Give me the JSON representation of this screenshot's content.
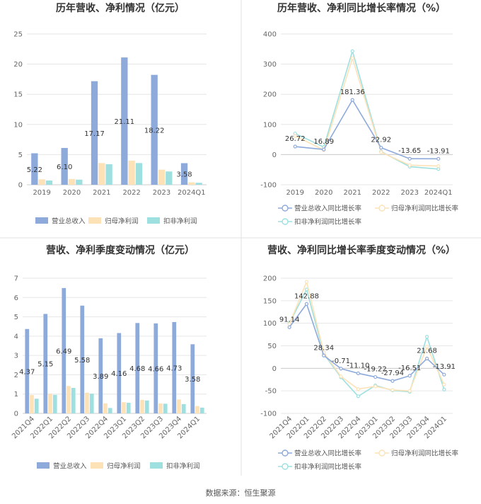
{
  "colors": {
    "revenue": "#8eaadb",
    "net_profit": "#fde2b7",
    "deducted_profit": "#9ee0e0",
    "grid": "#e6e6e6",
    "axis": "#cccccc",
    "divider": "#e0e0e0"
  },
  "source": "数据来源：恒生聚源",
  "chart_data": [
    {
      "type": "bar",
      "title": "历年营收、净利情况（亿元）",
      "categories": [
        "2019",
        "2020",
        "2021",
        "2022",
        "2023",
        "2024Q1"
      ],
      "ylim": [
        0,
        25
      ],
      "yticks": [
        0,
        5,
        10,
        15,
        20,
        25
      ],
      "grid": true,
      "legend_position": "bottom",
      "series": [
        {
          "name": "营业总收入",
          "values": [
            5.22,
            6.1,
            17.17,
            21.11,
            18.22,
            3.58
          ],
          "labels": [
            "5.22",
            "6.10",
            "17.17",
            "21.11",
            "18.22",
            "3.58"
          ]
        },
        {
          "name": "归母净利润",
          "values": [
            0.9,
            0.95,
            3.6,
            4.0,
            2.5,
            0.4
          ]
        },
        {
          "name": "扣非净利润",
          "values": [
            0.7,
            0.85,
            3.4,
            3.6,
            2.2,
            0.33
          ]
        }
      ]
    },
    {
      "type": "line",
      "title": "历年营收、净利同比增长率情况（%）",
      "categories": [
        "2019",
        "2020",
        "2021",
        "2022",
        "2023",
        "2024Q1"
      ],
      "ylim": [
        -100,
        400
      ],
      "yticks": [
        -100,
        0,
        100,
        200,
        300,
        400
      ],
      "grid": true,
      "legend_position": "bottom",
      "series": [
        {
          "name": "营业总收入同比增长率",
          "values": [
            26.72,
            16.89,
            181.36,
            22.92,
            -13.65,
            -13.91
          ],
          "labels": [
            "26.72",
            "16.89",
            "181.36",
            "22.92",
            "-13.65",
            "-13.91"
          ]
        },
        {
          "name": "归母净利润同比增长率",
          "values": [
            62,
            15,
            320,
            8,
            -35,
            -38
          ]
        },
        {
          "name": "扣非净利润同比增长率",
          "values": [
            70,
            25,
            343,
            10,
            -40,
            -48
          ]
        }
      ]
    },
    {
      "type": "bar",
      "title": "营收、净利季度变动情况（亿元）",
      "categories": [
        "2021Q4",
        "2022Q1",
        "2022Q2",
        "2022Q3",
        "2022Q4",
        "2023Q1",
        "2023Q2",
        "2023Q3",
        "2023Q4",
        "2024Q1"
      ],
      "ylim": [
        0,
        7
      ],
      "yticks": [
        0,
        1,
        2,
        3,
        4,
        5,
        6,
        7
      ],
      "grid": true,
      "legend_position": "bottom",
      "series": [
        {
          "name": "营业总收入",
          "values": [
            4.37,
            5.15,
            6.49,
            5.58,
            3.89,
            4.16,
            4.68,
            4.66,
            4.73,
            3.58
          ],
          "labels": [
            "4.37",
            "5.15",
            "6.49",
            "5.58",
            "3.89",
            "4.16",
            "4.68",
            "4.66",
            "4.73",
            "3.58"
          ]
        },
        {
          "name": "归母净利润",
          "values": [
            0.95,
            1.02,
            1.42,
            1.07,
            0.52,
            0.58,
            0.7,
            0.51,
            0.72,
            0.38
          ]
        },
        {
          "name": "扣非净利润",
          "values": [
            0.76,
            0.96,
            1.32,
            1.02,
            0.28,
            0.55,
            0.67,
            0.5,
            0.48,
            0.3
          ]
        }
      ]
    },
    {
      "type": "line",
      "title": "营收、净利同比增长率季度变动情况（%）",
      "categories": [
        "2021Q4",
        "2022Q1",
        "2022Q2",
        "2022Q3",
        "2022Q4",
        "2023Q1",
        "2023Q2",
        "2023Q3",
        "2023Q4",
        "2024Q1"
      ],
      "ylim": [
        -100,
        200
      ],
      "yticks": [
        -100,
        -50,
        0,
        50,
        100,
        150,
        200
      ],
      "grid": true,
      "legend_position": "bottom",
      "series": [
        {
          "name": "营业总收入同比增长率",
          "values": [
            91.14,
            142.88,
            28.34,
            -0.71,
            -11.1,
            -19.22,
            -27.94,
            -16.51,
            21.68,
            -13.91
          ],
          "labels": [
            "91.14",
            "142.88",
            "28.34",
            "-0.71",
            "-11.10",
            "-19.22",
            "-27.94",
            "-16.51",
            "21.68",
            "-13.91"
          ]
        },
        {
          "name": "归母净利润同比增长率",
          "values": [
            98,
            192,
            35,
            -18,
            -46,
            -40,
            -48,
            -50,
            48,
            -36
          ]
        },
        {
          "name": "扣非净利润同比增长率",
          "values": [
            100,
            175,
            32,
            -20,
            -62,
            -38,
            -49,
            -52,
            70,
            -47
          ]
        }
      ]
    }
  ]
}
